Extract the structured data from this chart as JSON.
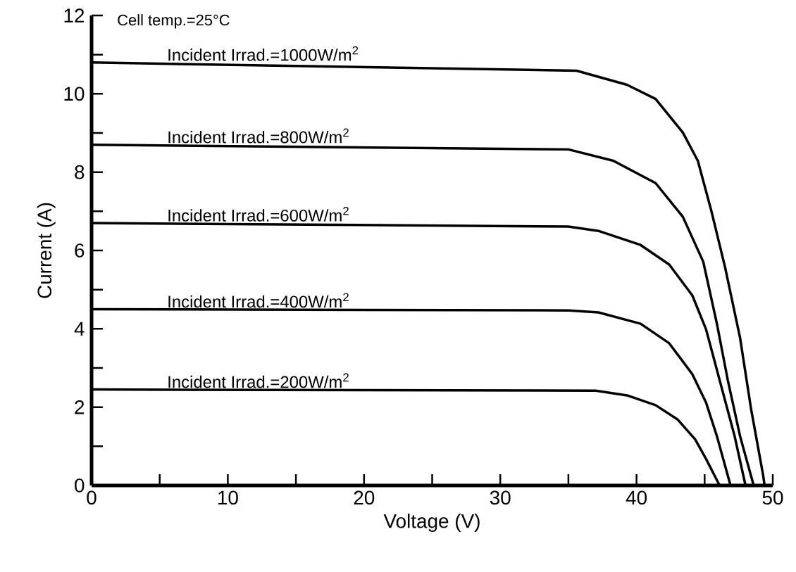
{
  "chart_data": {
    "type": "line",
    "xlabel": "Voltage (V)",
    "ylabel": "Current (A)",
    "annotations": [
      "Cell temp.=25°C"
    ],
    "xlim": [
      0,
      50
    ],
    "ylim": [
      0,
      12
    ],
    "xticks": [
      0,
      {
        "value": 5,
        "label": null
      },
      10,
      {
        "value": 15,
        "label": null
      },
      20,
      {
        "value": 25,
        "label": null
      },
      30,
      {
        "value": 35,
        "label": null
      },
      40,
      {
        "value": 45,
        "label": null
      },
      50
    ],
    "yticks": [
      0,
      {
        "value": 1,
        "label": null
      },
      2,
      {
        "value": 3,
        "label": null
      },
      4,
      {
        "value": 5,
        "label": null
      },
      6,
      {
        "value": 7,
        "label": null
      },
      8,
      {
        "value": 9,
        "label": null
      },
      10,
      {
        "value": 11,
        "label": null
      },
      12
    ],
    "marker": "none",
    "line_style": "solid",
    "series": [
      {
        "name": "Incident Irrad.=1000W/m$^{2}$",
        "color": "#000000",
        "x": [
          0,
          35.6,
          39.3,
          41.4,
          43.4,
          44.5,
          45.5,
          46.5,
          47.6,
          48.4,
          49.3,
          49.4
        ],
        "values": [
          10.8,
          10.59,
          10.23,
          9.87,
          9.01,
          8.29,
          7.0,
          5.57,
          3.77,
          1.97,
          0.25,
          0
        ]
      },
      {
        "name": "Incident Irrad.=800W/m$^{2}$",
        "color": "#000000",
        "x": [
          0,
          35,
          38.3,
          41.4,
          43.4,
          44.9,
          45.9,
          46.7,
          47.6,
          48.6
        ],
        "values": [
          8.7,
          8.58,
          8.29,
          7.72,
          6.86,
          5.71,
          4.13,
          2.69,
          1.26,
          0
        ]
      },
      {
        "name": "Incident Irrad.=600W/m$^{2}$",
        "color": "#000000",
        "x": [
          0,
          35,
          37.2,
          40.3,
          42.4,
          44.1,
          45.1,
          46.1,
          47.2,
          48.0
        ],
        "values": [
          6.7,
          6.61,
          6.5,
          6.14,
          5.64,
          4.85,
          3.99,
          2.69,
          1.26,
          0
        ]
      },
      {
        "name": "Incident Irrad.=400W/m$^{2}$",
        "color": "#000000",
        "x": [
          0,
          35,
          37.2,
          40.3,
          42.4,
          44.1,
          45.1,
          45.9,
          46.9
        ],
        "values": [
          4.5,
          4.47,
          4.42,
          4.13,
          3.63,
          2.84,
          2.12,
          1.26,
          0
        ]
      },
      {
        "name": "Incident Irrad.=200W/m$^{2}$",
        "color": "#000000",
        "x": [
          0,
          37,
          39.3,
          41.4,
          43.0,
          44.3,
          45.1,
          46.1
        ],
        "values": [
          2.45,
          2.42,
          2.3,
          2.05,
          1.69,
          1.18,
          0.68,
          0
        ]
      }
    ]
  }
}
